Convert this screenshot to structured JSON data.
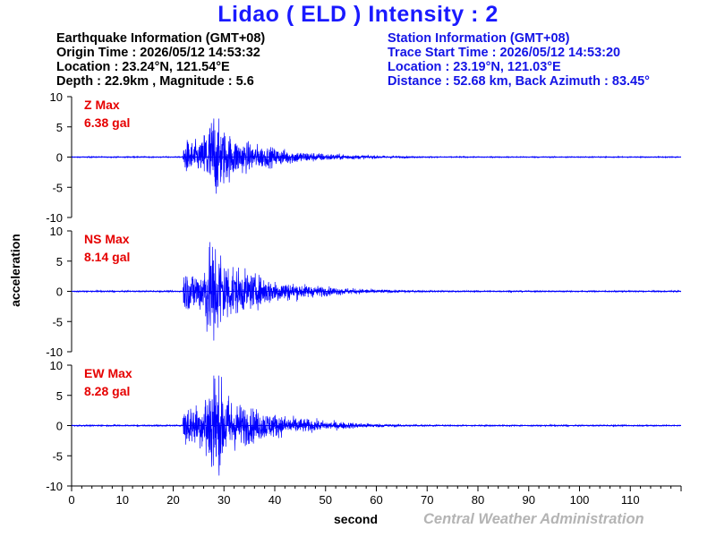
{
  "header": {
    "title": "Lidao ( ELD ) Intensity : 2"
  },
  "earthquake_info": [
    "Earthquake Information  (GMT+08)",
    "Origin Time : 2026/05/12 14:53:32",
    "Location : 23.24°N, 121.54°E",
    "Depth : 22.9km , Magnitude : 5.6"
  ],
  "station_info": [
    "Station Information  (GMT+08)",
    "Trace Start Time : 2026/05/12 14:53:20",
    "Location : 23.19°N, 121.03°E",
    "Distance : 52.68 km, Back Azimuth : 83.45°"
  ],
  "footer": {
    "ylabel": "acceleration",
    "xlabel": "second",
    "credit": "Central Weather Administration"
  },
  "colors": {
    "title": "#1a1aff",
    "trace": "#0000ff",
    "max_label": "#e60000",
    "credit": "#b4b4b4"
  },
  "chart_data": {
    "type": "line",
    "xlim": [
      0,
      120
    ],
    "ylim": [
      -10,
      10
    ],
    "x_ticks": [
      0,
      10,
      20,
      30,
      40,
      50,
      60,
      70,
      80,
      90,
      100,
      110
    ],
    "y_ticks": [
      10,
      5,
      0,
      -5,
      -10
    ],
    "grid": false,
    "onset_time_s": 21.9,
    "peak_time_s": 28,
    "panels": [
      {
        "component": "Z",
        "label": "Z Max",
        "max_value": "6.38 gal",
        "pga": 6.38
      },
      {
        "component": "NS",
        "label": "NS Max",
        "max_value": "8.14 gal",
        "pga": 8.14
      },
      {
        "component": "EW",
        "label": "EW Max",
        "max_value": "8.28 gal",
        "pga": 8.28
      }
    ]
  }
}
